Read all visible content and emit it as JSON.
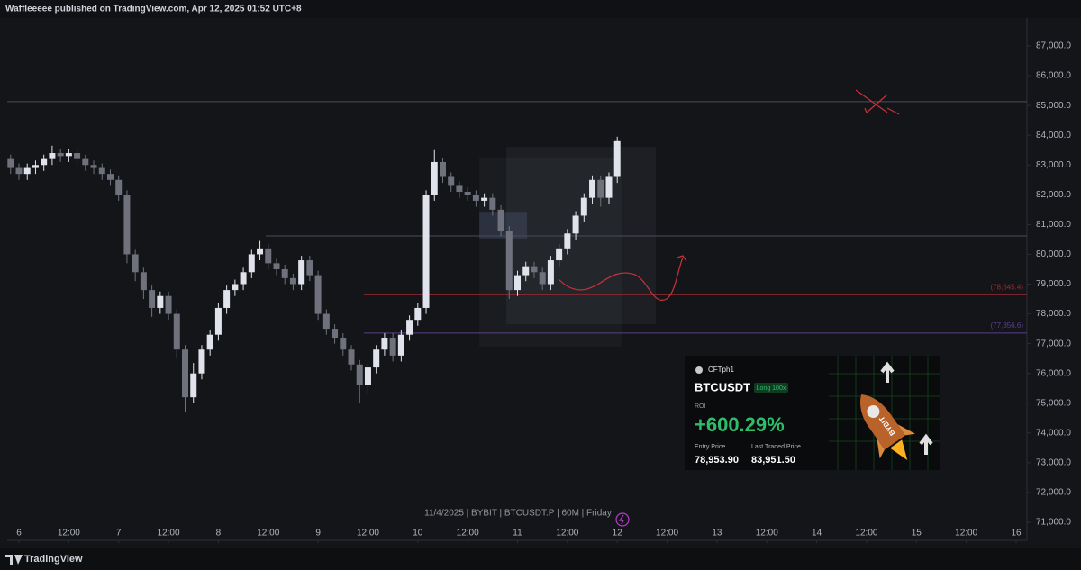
{
  "header": {
    "text": "Waffleeeee published on TradingView.com, Apr 12, 2025 01:52 UTC+8"
  },
  "chart_data": {
    "type": "candlestick",
    "info": "11/4/2025 | BYBIT | BTCUSDT.P | 60M | Friday",
    "up_color": "#e0e3eb",
    "down_color": "#6f727d",
    "xlim": [
      -2.82,
      242.6
    ],
    "ylim": [
      70395,
      87938
    ],
    "xticks": [
      {
        "value": 0,
        "label": "6"
      },
      {
        "value": 12,
        "label": "12:00"
      },
      {
        "value": 24,
        "label": "7"
      },
      {
        "value": 36,
        "label": "12:00"
      },
      {
        "value": 48,
        "label": "8"
      },
      {
        "value": 60,
        "label": "12:00"
      },
      {
        "value": 72,
        "label": "9"
      },
      {
        "value": 84,
        "label": "12:00"
      },
      {
        "value": 96,
        "label": "10"
      },
      {
        "value": 108,
        "label": "12:00"
      },
      {
        "value": 120,
        "label": "11"
      },
      {
        "value": 132,
        "label": "12:00"
      },
      {
        "value": 144,
        "label": "12"
      },
      {
        "value": 156,
        "label": "12:00"
      },
      {
        "value": 168,
        "label": "13"
      },
      {
        "value": 180,
        "label": "12:00"
      },
      {
        "value": 192,
        "label": "14"
      },
      {
        "value": 204,
        "label": "12:00"
      },
      {
        "value": 216,
        "label": "15"
      },
      {
        "value": 228,
        "label": "12:00"
      },
      {
        "value": 240,
        "label": "16"
      }
    ],
    "yticks": [
      {
        "value": 71000,
        "label": "71,000.0"
      },
      {
        "value": 72000,
        "label": "72,000.0"
      },
      {
        "value": 73000,
        "label": "73,000.0"
      },
      {
        "value": 74000,
        "label": "74,000.0"
      },
      {
        "value": 75000,
        "label": "75,000.0"
      },
      {
        "value": 76000,
        "label": "76,000.0"
      },
      {
        "value": 77000,
        "label": "77,000.0"
      },
      {
        "value": 78000,
        "label": "78,000.0"
      },
      {
        "value": 79000,
        "label": "79,000.0"
      },
      {
        "value": 80000,
        "label": "80,000.0"
      },
      {
        "value": 81000,
        "label": "81,000.0"
      },
      {
        "value": 82000,
        "label": "82,000.0"
      },
      {
        "value": 83000,
        "label": "83,000.0"
      },
      {
        "value": 84000,
        "label": "84,000.0"
      },
      {
        "value": 85000,
        "label": "85,000.0"
      },
      {
        "value": 86000,
        "label": "86,000.0"
      },
      {
        "value": 87000,
        "label": "87,000.0"
      }
    ],
    "x": [
      -2,
      0,
      2,
      4,
      6,
      8,
      10,
      12,
      14,
      16,
      18,
      20,
      22,
      24,
      26,
      28,
      30,
      32,
      34,
      36,
      38,
      40,
      42,
      44,
      46,
      48,
      50,
      52,
      54,
      56,
      58,
      60,
      62,
      64,
      66,
      68,
      70,
      72,
      74,
      76,
      78,
      80,
      82,
      84,
      86,
      88,
      90,
      92,
      94,
      96,
      98,
      100,
      102,
      104,
      106,
      108,
      110,
      112,
      114,
      116,
      118,
      120,
      122,
      124,
      126,
      128,
      130,
      132,
      134,
      136,
      138,
      140,
      142,
      144
    ],
    "open": [
      83200,
      82900,
      82700,
      82900,
      83000,
      83200,
      83400,
      83300,
      83400,
      83200,
      83000,
      82900,
      82700,
      82500,
      82000,
      80000,
      79400,
      78800,
      78200,
      78600,
      78000,
      76800,
      75200,
      76000,
      76800,
      77300,
      78200,
      78800,
      79000,
      79400,
      80000,
      80200,
      79700,
      79500,
      79200,
      79000,
      79800,
      79300,
      78000,
      77500,
      77200,
      76800,
      76300,
      75600,
      76200,
      76800,
      77200,
      76600,
      77300,
      77800,
      78200,
      82000,
      83100,
      82600,
      82300,
      82100,
      82000,
      81800,
      81900,
      81500,
      80800,
      78800,
      79300,
      79600,
      79400,
      79000,
      79800,
      80200,
      80700,
      81300,
      81900,
      82500,
      81900,
      82600
    ],
    "high": [
      83350,
      83050,
      83050,
      83150,
      83350,
      83650,
      83550,
      83550,
      83550,
      83350,
      83150,
      83050,
      82850,
      82650,
      82150,
      80150,
      79550,
      78950,
      78750,
      78750,
      78150,
      76950,
      76350,
      76950,
      77450,
      78350,
      78950,
      79150,
      79550,
      80150,
      80450,
      80350,
      79850,
      79650,
      79350,
      79950,
      79950,
      79450,
      78150,
      77650,
      77350,
      76950,
      76450,
      76350,
      76950,
      77350,
      77350,
      77450,
      77950,
      78350,
      82150,
      83500,
      83250,
      82750,
      82450,
      82250,
      82150,
      82050,
      82050,
      81650,
      80950,
      79450,
      79750,
      79750,
      79550,
      79950,
      80350,
      80850,
      81450,
      82050,
      82650,
      82650,
      82750,
      83950
    ],
    "low": [
      82700,
      82500,
      82500,
      82700,
      82800,
      83000,
      83100,
      83100,
      83000,
      82800,
      82700,
      82500,
      82300,
      81800,
      79700,
      79100,
      78500,
      77900,
      78000,
      77800,
      76500,
      74700,
      75000,
      75800,
      76600,
      77100,
      78000,
      78600,
      78800,
      79200,
      79800,
      79500,
      79300,
      79000,
      78800,
      78800,
      79100,
      77800,
      77300,
      77000,
      76600,
      76100,
      75000,
      75300,
      76000,
      76600,
      76400,
      76400,
      77100,
      77600,
      78000,
      81800,
      82400,
      82100,
      81900,
      81800,
      81600,
      81600,
      81300,
      80600,
      78500,
      78600,
      79100,
      79200,
      78800,
      78800,
      79600,
      80000,
      80500,
      81100,
      81700,
      81600,
      81700,
      82400
    ],
    "close": [
      82900,
      82700,
      82900,
      83000,
      83200,
      83400,
      83300,
      83400,
      83200,
      83000,
      82900,
      82700,
      82500,
      82000,
      80000,
      79400,
      78800,
      78200,
      78600,
      78000,
      76800,
      75200,
      76000,
      76800,
      77300,
      78200,
      78800,
      79000,
      79400,
      80000,
      80200,
      79700,
      79500,
      79200,
      79000,
      79800,
      79300,
      78000,
      77500,
      77200,
      76800,
      76300,
      75600,
      76200,
      76800,
      77200,
      76600,
      77300,
      77800,
      78200,
      82000,
      83100,
      82600,
      82300,
      82100,
      82000,
      81800,
      81900,
      81500,
      80800,
      78800,
      79300,
      79600,
      79400,
      79000,
      79800,
      80200,
      80700,
      81300,
      81900,
      82500,
      81900,
      82600,
      83800
    ],
    "levels": [
      {
        "value": 85130,
        "color": "#4a4d57"
      },
      {
        "value": 80620,
        "x0": 59.4,
        "color": "#4a4d57"
      },
      {
        "value": 78645.4,
        "x0": 83,
        "label": "(78,645.4)",
        "color": "#9c2b33"
      },
      {
        "value": 77356.6,
        "x0": 83,
        "label": "(77,356.6)",
        "color": "#5b3f8c"
      }
    ],
    "zones": [
      {
        "x": [
          110.8,
          145
        ],
        "y": [
          76900,
          83250
        ],
        "color": "rgba(120,123,134,0.07)"
      },
      {
        "x": [
          117.3,
          153.3
        ],
        "y": [
          77650,
          83610
        ],
        "color": "rgba(120,123,134,0.10)"
      },
      {
        "x": [
          110.8,
          122.3
        ],
        "y": [
          80530,
          81430
        ],
        "color": "rgba(100,110,160,0.25)"
      }
    ]
  },
  "card": {
    "user": "CFTph1",
    "symbol": "BTCUSDT",
    "badge": "Long 100x",
    "roi_label": "ROI",
    "roi": "+600.29%",
    "entry_label": "Entry Price",
    "entry": "78,953.90",
    "last_label": "Last Traded Price",
    "last": "83,951.50",
    "brand": "BYBIT"
  },
  "footer": {
    "logo": "TradingView"
  }
}
